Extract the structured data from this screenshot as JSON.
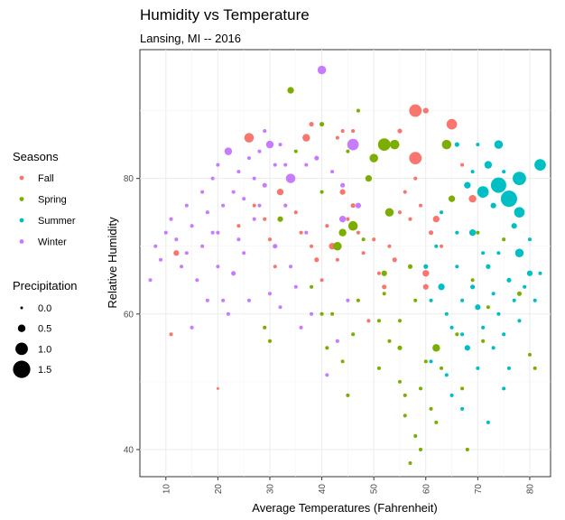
{
  "chart_data": {
    "type": "scatter",
    "title": "Humidity vs Temperature",
    "subtitle": "Lansing, MI -- 2016",
    "xlabel": "Average Temperatures (Fahrenheit)",
    "ylabel": "Relative Humidity",
    "xlim": [
      5,
      84
    ],
    "ylim": [
      36,
      99
    ],
    "x_ticks": [
      "10",
      "20",
      "30",
      "40",
      "50",
      "60",
      "70",
      "80"
    ],
    "y_ticks": [
      "40",
      "60",
      "80"
    ],
    "grid": true,
    "legend_placement": "left",
    "color_legend": {
      "title": "Seasons",
      "items": [
        {
          "label": "Fall",
          "color": "#F8766D"
        },
        {
          "label": "Spring",
          "color": "#7CAE00"
        },
        {
          "label": "Summer",
          "color": "#00BFC4"
        },
        {
          "label": "Winter",
          "color": "#C77CFF"
        }
      ]
    },
    "size_legend": {
      "title": "Precipitation",
      "items": [
        {
          "label": "0.0",
          "value": 0.0
        },
        {
          "label": "0.5",
          "value": 0.5
        },
        {
          "label": "1.0",
          "value": 1.0
        },
        {
          "label": "1.5",
          "value": 1.5
        }
      ]
    },
    "series": [
      {
        "name": "Fall",
        "points": [
          [
            11,
            57,
            0.1
          ],
          [
            12,
            69,
            0.3
          ],
          [
            20,
            49,
            0.0
          ],
          [
            24,
            73,
            0.1
          ],
          [
            26,
            86,
            0.7
          ],
          [
            27,
            76,
            0.1
          ],
          [
            29,
            74,
            0.1
          ],
          [
            30,
            71,
            0.1
          ],
          [
            31,
            67,
            0.1
          ],
          [
            32,
            78,
            0.4
          ],
          [
            33,
            76,
            0.1
          ],
          [
            34,
            80,
            0.2
          ],
          [
            35,
            75,
            0.1
          ],
          [
            36,
            72,
            0.1
          ],
          [
            37,
            86,
            0.5
          ],
          [
            38,
            70,
            0.1
          ],
          [
            39,
            68,
            0.2
          ],
          [
            40,
            65,
            0.1
          ],
          [
            41,
            73,
            0.1
          ],
          [
            42,
            70,
            0.4
          ],
          [
            43,
            68,
            0.1
          ],
          [
            44,
            78,
            0.3
          ],
          [
            45,
            74,
            0.1
          ],
          [
            46,
            76,
            0.2
          ],
          [
            47,
            72,
            0.1
          ],
          [
            48,
            69,
            0.1
          ],
          [
            49,
            59,
            0.1
          ],
          [
            50,
            71,
            0.1
          ],
          [
            51,
            66,
            0.1
          ],
          [
            52,
            64,
            0.2
          ],
          [
            53,
            70,
            0.1
          ],
          [
            54,
            68,
            0.2
          ],
          [
            55,
            75,
            0.1
          ],
          [
            56,
            78,
            0.1
          ],
          [
            57,
            74,
            0.1
          ],
          [
            58,
            90,
            1.0
          ],
          [
            58,
            83,
            1.0
          ],
          [
            59,
            76,
            0.1
          ],
          [
            60,
            66,
            0.4
          ],
          [
            60,
            64,
            0.3
          ],
          [
            61,
            72,
            0.2
          ],
          [
            62,
            74,
            0.4
          ],
          [
            63,
            70,
            0.1
          ],
          [
            65,
            88,
            0.8
          ],
          [
            67,
            82,
            0.1
          ],
          [
            69,
            77,
            0.5
          ],
          [
            38,
            88,
            0.2
          ],
          [
            44,
            87,
            0.1
          ],
          [
            46,
            87,
            0.1
          ],
          [
            43,
            86,
            0.1
          ],
          [
            55,
            87,
            0.2
          ],
          [
            60,
            90,
            0.3
          ],
          [
            58,
            80,
            0.1
          ]
        ]
      },
      {
        "name": "Spring",
        "points": [
          [
            29,
            58,
            0.1
          ],
          [
            30,
            56,
            0.1
          ],
          [
            32,
            74,
            0.3
          ],
          [
            34,
            93,
            0.4
          ],
          [
            35,
            84,
            0.1
          ],
          [
            38,
            64,
            0.1
          ],
          [
            40,
            88,
            0.2
          ],
          [
            40,
            78,
            0.1
          ],
          [
            41,
            55,
            0.1
          ],
          [
            42,
            60,
            0.1
          ],
          [
            43,
            70,
            0.6
          ],
          [
            44,
            72,
            0.5
          ],
          [
            44,
            53,
            0.1
          ],
          [
            45,
            84,
            0.1
          ],
          [
            46,
            57,
            0.1
          ],
          [
            46,
            73,
            0.7
          ],
          [
            47,
            90,
            0.1
          ],
          [
            47,
            62,
            0.1
          ],
          [
            48,
            71,
            0.1
          ],
          [
            49,
            80,
            0.4
          ],
          [
            50,
            83,
            0.6
          ],
          [
            51,
            59,
            0.1
          ],
          [
            51,
            52,
            0.1
          ],
          [
            52,
            63,
            0.1
          ],
          [
            52,
            85,
            1.0
          ],
          [
            52,
            66,
            0.3
          ],
          [
            53,
            56,
            0.1
          ],
          [
            53,
            75,
            0.6
          ],
          [
            54,
            85,
            0.7
          ],
          [
            55,
            59,
            0.1
          ],
          [
            55,
            55,
            0.2
          ],
          [
            55,
            50,
            0.1
          ],
          [
            56,
            48,
            0.1
          ],
          [
            56,
            45,
            0.1
          ],
          [
            57,
            38,
            0.1
          ],
          [
            57,
            67,
            0.2
          ],
          [
            58,
            42,
            0.1
          ],
          [
            58,
            62,
            0.1
          ],
          [
            59,
            40,
            0.1
          ],
          [
            59,
            49,
            0.1
          ],
          [
            60,
            53,
            0.1
          ],
          [
            61,
            46,
            0.1
          ],
          [
            62,
            55,
            0.5
          ],
          [
            62,
            44,
            0.1
          ],
          [
            63,
            52,
            0.1
          ],
          [
            64,
            85,
            0.7
          ],
          [
            65,
            77,
            0.4
          ],
          [
            66,
            57,
            0.1
          ],
          [
            67,
            49,
            0.1
          ],
          [
            68,
            40,
            0.1
          ],
          [
            69,
            65,
            0.1
          ],
          [
            70,
            72,
            0.1
          ],
          [
            71,
            56,
            0.1
          ],
          [
            72,
            61,
            0.1
          ],
          [
            75,
            71,
            0.1
          ],
          [
            78,
            63,
            0.2
          ],
          [
            80,
            54,
            0.1
          ],
          [
            81,
            52,
            0.1
          ],
          [
            40,
            60,
            0.1
          ],
          [
            45,
            48,
            0.1
          ]
        ]
      },
      {
        "name": "Summer",
        "points": [
          [
            60,
            67,
            0.2
          ],
          [
            61,
            62,
            0.1
          ],
          [
            61,
            53,
            0.1
          ],
          [
            62,
            70,
            0.1
          ],
          [
            63,
            64,
            0.4
          ],
          [
            64,
            60,
            0.1
          ],
          [
            64,
            51,
            0.1
          ],
          [
            65,
            58,
            0.1
          ],
          [
            65,
            48,
            0.1
          ],
          [
            66,
            85,
            0.2
          ],
          [
            66,
            67,
            0.1
          ],
          [
            67,
            62,
            0.1
          ],
          [
            67,
            57,
            0.1
          ],
          [
            67,
            46,
            0.1
          ],
          [
            68,
            55,
            0.3
          ],
          [
            68,
            79,
            0.4
          ],
          [
            69,
            81,
            0.1
          ],
          [
            69,
            64,
            0.2
          ],
          [
            69,
            72,
            0.4
          ],
          [
            70,
            85,
            0.1
          ],
          [
            70,
            61,
            0.3
          ],
          [
            70,
            52,
            0.1
          ],
          [
            71,
            78,
            0.9
          ],
          [
            71,
            69,
            0.1
          ],
          [
            71,
            58,
            0.1
          ],
          [
            72,
            82,
            0.5
          ],
          [
            72,
            67,
            0.2
          ],
          [
            72,
            44,
            0.1
          ],
          [
            73,
            76,
            0.3
          ],
          [
            73,
            63,
            0.1
          ],
          [
            73,
            55,
            0.1
          ],
          [
            74,
            85,
            0.6
          ],
          [
            74,
            79,
            1.3
          ],
          [
            74,
            69,
            0.1
          ],
          [
            74,
            60,
            0.1
          ],
          [
            75,
            81,
            0.1
          ],
          [
            75,
            57,
            0.1
          ],
          [
            76,
            77,
            1.4
          ],
          [
            76,
            65,
            0.2
          ],
          [
            76,
            52,
            0.1
          ],
          [
            77,
            73,
            0.3
          ],
          [
            77,
            62,
            0.1
          ],
          [
            78,
            80,
            1.1
          ],
          [
            78,
            75,
            0.8
          ],
          [
            78,
            69,
            0.6
          ],
          [
            78,
            59,
            0.1
          ],
          [
            79,
            64,
            0.1
          ],
          [
            80,
            66,
            0.3
          ],
          [
            81,
            62,
            0.1
          ],
          [
            82,
            82,
            0.9
          ],
          [
            82,
            66,
            0.1
          ],
          [
            80,
            71,
            0.1
          ],
          [
            75,
            49,
            0.1
          ],
          [
            63,
            75,
            0.1
          ],
          [
            66,
            72,
            0.1
          ]
        ]
      },
      {
        "name": "Winter",
        "points": [
          [
            7,
            65,
            0.1
          ],
          [
            8,
            70,
            0.1
          ],
          [
            9,
            68,
            0.1
          ],
          [
            10,
            72,
            0.1
          ],
          [
            11,
            74,
            0.1
          ],
          [
            12,
            71,
            0.1
          ],
          [
            13,
            67,
            0.1
          ],
          [
            14,
            76,
            0.1
          ],
          [
            15,
            73,
            0.1
          ],
          [
            15,
            58,
            0.1
          ],
          [
            16,
            65,
            0.1
          ],
          [
            17,
            78,
            0.1
          ],
          [
            17,
            70,
            0.1
          ],
          [
            18,
            75,
            0.1
          ],
          [
            18,
            62,
            0.1
          ],
          [
            19,
            80,
            0.1
          ],
          [
            19,
            72,
            0.1
          ],
          [
            20,
            82,
            0.1
          ],
          [
            20,
            67,
            0.1
          ],
          [
            21,
            76,
            0.1
          ],
          [
            22,
            84,
            0.5
          ],
          [
            22,
            60,
            0.1
          ],
          [
            23,
            78,
            0.1
          ],
          [
            23,
            66,
            0.2
          ],
          [
            24,
            81,
            0.1
          ],
          [
            24,
            71,
            0.1
          ],
          [
            25,
            69,
            0.1
          ],
          [
            26,
            83,
            0.1
          ],
          [
            27,
            80,
            0.1
          ],
          [
            27,
            74,
            0.1
          ],
          [
            28,
            84,
            0.1
          ],
          [
            28,
            76,
            0.1
          ],
          [
            29,
            79,
            0.2
          ],
          [
            30,
            85,
            0.5
          ],
          [
            30,
            63,
            0.1
          ],
          [
            31,
            82,
            0.1
          ],
          [
            31,
            70,
            0.2
          ],
          [
            32,
            85,
            0.1
          ],
          [
            32,
            61,
            0.1
          ],
          [
            33,
            82,
            0.1
          ],
          [
            33,
            76,
            0.1
          ],
          [
            34,
            80,
            0.7
          ],
          [
            34,
            67,
            0.1
          ],
          [
            35,
            64,
            0.1
          ],
          [
            36,
            58,
            0.1
          ],
          [
            37,
            82,
            0.1
          ],
          [
            37,
            72,
            0.1
          ],
          [
            38,
            60,
            0.1
          ],
          [
            39,
            83,
            0.2
          ],
          [
            40,
            96,
            0.6
          ],
          [
            41,
            51,
            0.1
          ],
          [
            42,
            81,
            0.1
          ],
          [
            43,
            56,
            0.1
          ],
          [
            44,
            79,
            0.2
          ],
          [
            44,
            74,
            0.4
          ],
          [
            45,
            62,
            0.1
          ],
          [
            46,
            85,
            0.9
          ],
          [
            47,
            76,
            0.3
          ],
          [
            29,
            87,
            0.1
          ],
          [
            20,
            72,
            0.1
          ],
          [
            26,
            62,
            0.1
          ],
          [
            25,
            77,
            0.1
          ],
          [
            21,
            62,
            0.1
          ],
          [
            14,
            69,
            0.1
          ]
        ]
      }
    ]
  }
}
